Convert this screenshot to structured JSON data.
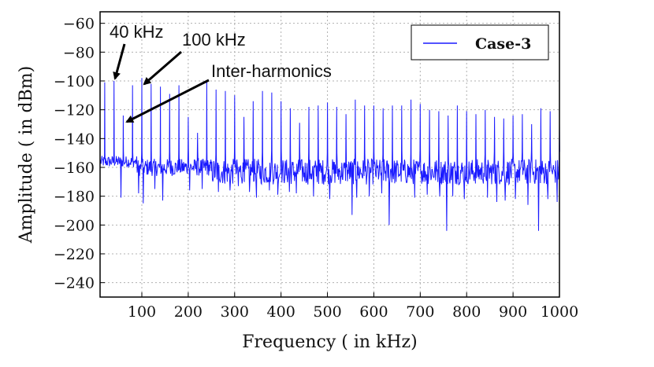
{
  "chart_data": {
    "type": "line",
    "title": "",
    "xlabel": "Frequency ( in kHz)",
    "ylabel": "Amplitude ( in dBm)",
    "xlim": [
      10,
      1000
    ],
    "ylim": [
      -250,
      -52
    ],
    "x_ticks": [
      100,
      200,
      300,
      400,
      500,
      600,
      700,
      800,
      900,
      1000
    ],
    "y_ticks": [
      -60,
      -80,
      -100,
      -120,
      -140,
      -160,
      -180,
      -200,
      -220,
      -240
    ],
    "grid": true,
    "legend_position": "top-right",
    "color": "#1a1aff",
    "series": [
      {
        "name": "Case-3",
        "peaks": [
          {
            "x": 20,
            "y": -101
          },
          {
            "x": 40,
            "y": -100
          },
          {
            "x": 60,
            "y": -124
          },
          {
            "x": 80,
            "y": -103
          },
          {
            "x": 100,
            "y": -98
          },
          {
            "x": 120,
            "y": -102
          },
          {
            "x": 140,
            "y": -104
          },
          {
            "x": 160,
            "y": -109
          },
          {
            "x": 180,
            "y": -103
          },
          {
            "x": 200,
            "y": -125
          },
          {
            "x": 220,
            "y": -136
          },
          {
            "x": 240,
            "y": -100
          },
          {
            "x": 260,
            "y": -106
          },
          {
            "x": 280,
            "y": -107
          },
          {
            "x": 300,
            "y": -110
          },
          {
            "x": 320,
            "y": -125
          },
          {
            "x": 340,
            "y": -114
          },
          {
            "x": 360,
            "y": -107
          },
          {
            "x": 380,
            "y": -108
          },
          {
            "x": 400,
            "y": -114
          },
          {
            "x": 420,
            "y": -119
          },
          {
            "x": 440,
            "y": -129
          },
          {
            "x": 460,
            "y": -118
          },
          {
            "x": 480,
            "y": -117
          },
          {
            "x": 500,
            "y": -115
          },
          {
            "x": 520,
            "y": -118
          },
          {
            "x": 540,
            "y": -123
          },
          {
            "x": 560,
            "y": -113
          },
          {
            "x": 580,
            "y": -117
          },
          {
            "x": 600,
            "y": -117
          },
          {
            "x": 620,
            "y": -119
          },
          {
            "x": 640,
            "y": -117
          },
          {
            "x": 660,
            "y": -117
          },
          {
            "x": 680,
            "y": -113
          },
          {
            "x": 700,
            "y": -116
          },
          {
            "x": 720,
            "y": -120
          },
          {
            "x": 740,
            "y": -121
          },
          {
            "x": 760,
            "y": -124
          },
          {
            "x": 780,
            "y": -117
          },
          {
            "x": 800,
            "y": -121
          },
          {
            "x": 820,
            "y": -123
          },
          {
            "x": 840,
            "y": -120
          },
          {
            "x": 860,
            "y": -125
          },
          {
            "x": 880,
            "y": -126
          },
          {
            "x": 900,
            "y": -124
          },
          {
            "x": 920,
            "y": -123
          },
          {
            "x": 940,
            "y": -130
          },
          {
            "x": 960,
            "y": -119
          },
          {
            "x": 980,
            "y": -121
          },
          {
            "x": 1000,
            "y": -130
          }
        ],
        "dips": [
          {
            "x": 55,
            "y": -181
          },
          {
            "x": 93,
            "y": -178
          },
          {
            "x": 103,
            "y": -185
          },
          {
            "x": 128,
            "y": -175
          },
          {
            "x": 145,
            "y": -183
          },
          {
            "x": 203,
            "y": -176
          },
          {
            "x": 230,
            "y": -175
          },
          {
            "x": 265,
            "y": -177
          },
          {
            "x": 290,
            "y": -176
          },
          {
            "x": 308,
            "y": -173
          },
          {
            "x": 332,
            "y": -177
          },
          {
            "x": 347,
            "y": -181
          },
          {
            "x": 375,
            "y": -176
          },
          {
            "x": 393,
            "y": -179
          },
          {
            "x": 418,
            "y": -177
          },
          {
            "x": 433,
            "y": -178
          },
          {
            "x": 470,
            "y": -180
          },
          {
            "x": 505,
            "y": -182
          },
          {
            "x": 553,
            "y": -193
          },
          {
            "x": 563,
            "y": -181
          },
          {
            "x": 590,
            "y": -180
          },
          {
            "x": 617,
            "y": -178
          },
          {
            "x": 633,
            "y": -200
          },
          {
            "x": 660,
            "y": -178
          },
          {
            "x": 688,
            "y": -181
          },
          {
            "x": 715,
            "y": -179
          },
          {
            "x": 742,
            "y": -180
          },
          {
            "x": 757,
            "y": -204
          },
          {
            "x": 770,
            "y": -180
          },
          {
            "x": 795,
            "y": -182
          },
          {
            "x": 820,
            "y": -180
          },
          {
            "x": 845,
            "y": -181
          },
          {
            "x": 865,
            "y": -184
          },
          {
            "x": 883,
            "y": -183
          },
          {
            "x": 905,
            "y": -182
          },
          {
            "x": 932,
            "y": -186
          },
          {
            "x": 955,
            "y": -204
          },
          {
            "x": 975,
            "y": -182
          },
          {
            "x": 995,
            "y": -184
          }
        ]
      }
    ],
    "annotations": [
      {
        "text": "40 kHz",
        "target_x": 40,
        "target_y": -100
      },
      {
        "text": "100 kHz",
        "target_x": 100,
        "target_y": -98
      },
      {
        "text": "Inter-harmonics",
        "target_x": 60,
        "target_y": -125
      }
    ]
  }
}
